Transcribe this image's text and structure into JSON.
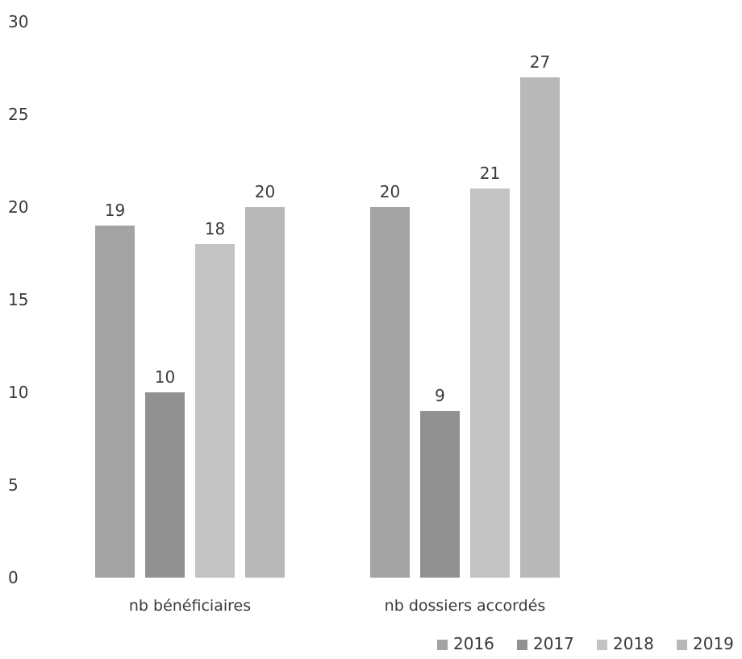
{
  "chart_data": {
    "type": "bar",
    "categories": [
      "nb bénéficiaires",
      "nb dossiers accordés"
    ],
    "series": [
      {
        "name": "2016",
        "values": [
          19,
          20
        ],
        "color": "#a3a3a3"
      },
      {
        "name": "2017",
        "values": [
          10,
          9
        ],
        "color": "#919191"
      },
      {
        "name": "2018",
        "values": [
          18,
          21
        ],
        "color": "#c3c3c3"
      },
      {
        "name": "2019",
        "values": [
          20,
          27
        ],
        "color": "#b8b8b8"
      }
    ],
    "title": "",
    "xlabel": "",
    "ylabel": "",
    "ylim": [
      0,
      30
    ],
    "yticks": [
      "0",
      "5",
      "10",
      "15",
      "20",
      "25",
      "30"
    ],
    "grid": false,
    "legend_position": "bottom-right",
    "data_labels": true
  }
}
